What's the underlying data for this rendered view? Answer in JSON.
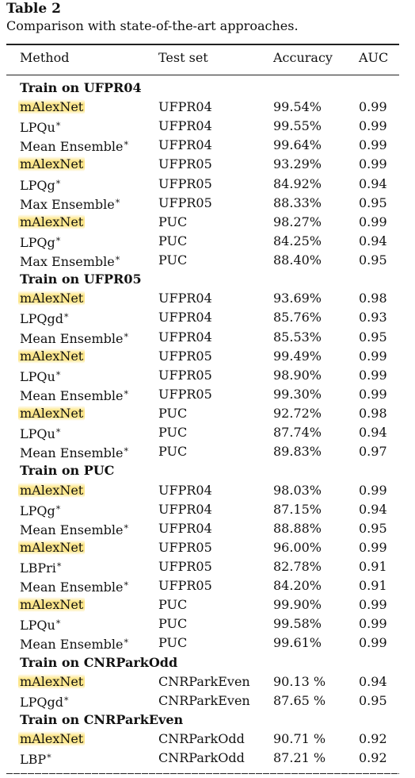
{
  "caption": {
    "title": "Table 2",
    "text": "Comparison with state-of-the-art approaches."
  },
  "headers": [
    "Method",
    "Test set",
    "Accuracy",
    "AUC"
  ],
  "groups": [
    {
      "title": "Train on UFPR04",
      "rows": [
        {
          "method": "mAlexNet",
          "star": false,
          "highlight": true,
          "test": "UFPR04",
          "acc": "99.54%",
          "auc": "0.99"
        },
        {
          "method": "LPQu",
          "star": true,
          "highlight": false,
          "test": "UFPR04",
          "acc": "99.55%",
          "auc": "0.99"
        },
        {
          "method": "Mean Ensemble",
          "star": true,
          "highlight": false,
          "test": "UFPR04",
          "acc": "99.64%",
          "auc": "0.99"
        },
        {
          "method": "mAlexNet",
          "star": false,
          "highlight": true,
          "test": "UFPR05",
          "acc": "93.29%",
          "auc": "0.99"
        },
        {
          "method": "LPQg",
          "star": true,
          "highlight": false,
          "test": "UFPR05",
          "acc": "84.92%",
          "auc": "0.94"
        },
        {
          "method": "Max Ensemble",
          "star": true,
          "highlight": false,
          "test": "UFPR05",
          "acc": "88.33%",
          "auc": "0.95"
        },
        {
          "method": "mAlexNet",
          "star": false,
          "highlight": true,
          "test": "PUC",
          "acc": "98.27%",
          "auc": "0.99"
        },
        {
          "method": "LPQg",
          "star": true,
          "highlight": false,
          "test": "PUC",
          "acc": "84.25%",
          "auc": "0.94"
        },
        {
          "method": "Max Ensemble",
          "star": true,
          "highlight": false,
          "test": "PUC",
          "acc": "88.40%",
          "auc": "0.95"
        }
      ]
    },
    {
      "title": "Train on UFPR05",
      "rows": [
        {
          "method": "mAlexNet",
          "star": false,
          "highlight": true,
          "test": "UFPR04",
          "acc": "93.69%",
          "auc": "0.98"
        },
        {
          "method": "LPQgd",
          "star": true,
          "highlight": false,
          "test": "UFPR04",
          "acc": "85.76%",
          "auc": "0.93"
        },
        {
          "method": "Mean Ensemble",
          "star": true,
          "highlight": false,
          "test": "UFPR04",
          "acc": "85.53%",
          "auc": "0.95"
        },
        {
          "method": "mAlexNet",
          "star": false,
          "highlight": true,
          "test": "UFPR05",
          "acc": "99.49%",
          "auc": "0.99"
        },
        {
          "method": "LPQu",
          "star": true,
          "highlight": false,
          "test": "UFPR05",
          "acc": "98.90%",
          "auc": "0.99"
        },
        {
          "method": "Mean Ensemble",
          "star": true,
          "highlight": false,
          "test": "UFPR05",
          "acc": "99.30%",
          "auc": "0.99"
        },
        {
          "method": "mAlexNet",
          "star": false,
          "highlight": true,
          "test": "PUC",
          "acc": "92.72%",
          "auc": "0.98"
        },
        {
          "method": "LPQu",
          "star": true,
          "highlight": false,
          "test": "PUC",
          "acc": "87.74%",
          "auc": "0.94"
        },
        {
          "method": "Mean Ensemble",
          "star": true,
          "highlight": false,
          "test": "PUC",
          "acc": "89.83%",
          "auc": "0.97"
        }
      ]
    },
    {
      "title": "Train on PUC",
      "rows": [
        {
          "method": "mAlexNet",
          "star": false,
          "highlight": true,
          "test": "UFPR04",
          "acc": "98.03%",
          "auc": "0.99"
        },
        {
          "method": "LPQg",
          "star": true,
          "highlight": false,
          "test": "UFPR04",
          "acc": "87.15%",
          "auc": "0.94"
        },
        {
          "method": "Mean Ensemble",
          "star": true,
          "highlight": false,
          "test": "UFPR04",
          "acc": "88.88%",
          "auc": "0.95"
        },
        {
          "method": "mAlexNet",
          "star": false,
          "highlight": true,
          "test": "UFPR05",
          "acc": "96.00%",
          "auc": "0.99"
        },
        {
          "method": "LBPri",
          "star": true,
          "highlight": false,
          "test": "UFPR05",
          "acc": "82.78%",
          "auc": "0.91"
        },
        {
          "method": "Mean Ensemble",
          "star": true,
          "highlight": false,
          "test": "UFPR05",
          "acc": "84.20%",
          "auc": "0.91"
        },
        {
          "method": "mAlexNet",
          "star": false,
          "highlight": true,
          "test": "PUC",
          "acc": "99.90%",
          "auc": "0.99"
        },
        {
          "method": "LPQu",
          "star": true,
          "highlight": false,
          "test": "PUC",
          "acc": "99.58%",
          "auc": "0.99"
        },
        {
          "method": "Mean Ensemble",
          "star": true,
          "highlight": false,
          "test": "PUC",
          "acc": "99.61%",
          "auc": "0.99"
        }
      ]
    },
    {
      "title": "Train on CNRParkOdd",
      "rows": [
        {
          "method": "mAlexNet",
          "star": false,
          "highlight": true,
          "test": "CNRParkEven",
          "acc": "90.13 %",
          "auc": "0.94"
        },
        {
          "method": "LPQgd",
          "star": true,
          "highlight": false,
          "test": "CNRParkEven",
          "acc": "87.65 %",
          "auc": "0.95"
        }
      ]
    },
    {
      "title": "Train on CNRParkEven",
      "rows": [
        {
          "method": "mAlexNet",
          "star": false,
          "highlight": true,
          "test": "CNRParkOdd",
          "acc": "90.71 %",
          "auc": "0.92"
        },
        {
          "method": "LBP",
          "star": true,
          "highlight": false,
          "test": "CNRParkOdd",
          "acc": "87.21 %",
          "auc": "0.92"
        }
      ]
    }
  ]
}
